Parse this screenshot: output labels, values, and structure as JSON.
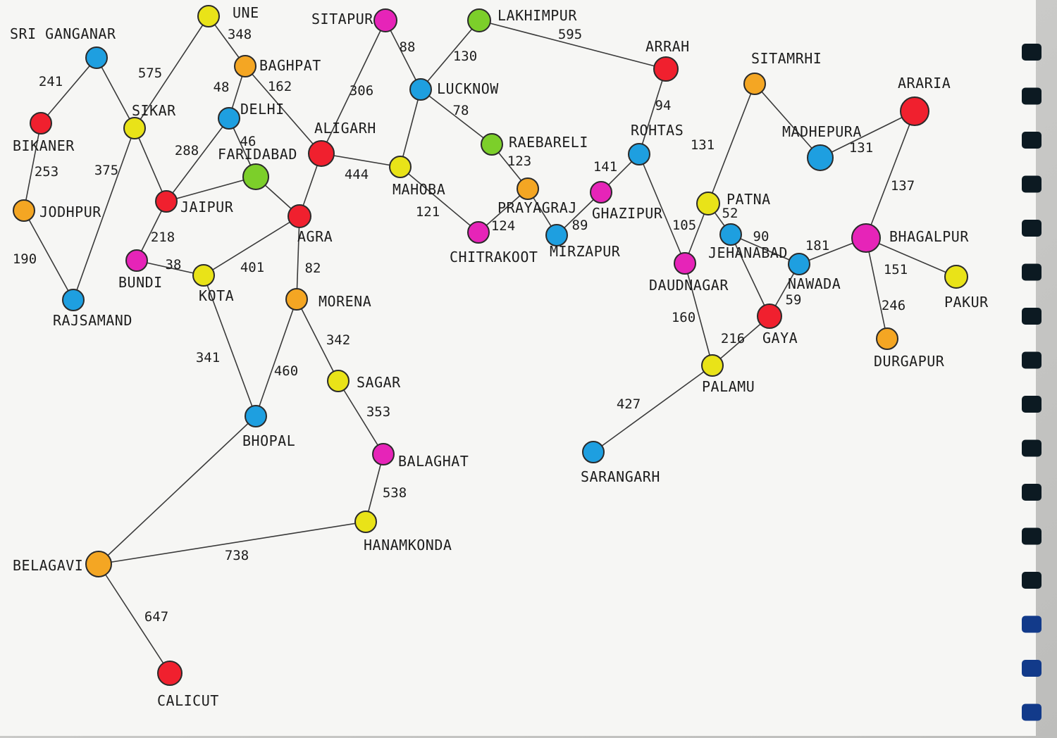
{
  "colors": {
    "red": "#f0202e",
    "orange": "#f4a623",
    "yellow": "#e9e318",
    "blue": "#1e9fe0",
    "magenta": "#e624b8",
    "green": "#7ccf2a",
    "ink": "#1d1d1d",
    "paper": "#f5f5f3"
  },
  "nodes": [
    {
      "id": "sri-ganganar",
      "label": "SRI GANGANAR",
      "color": "blue"
    },
    {
      "id": "une",
      "label": "UNE",
      "color": "yellow"
    },
    {
      "id": "sitapur",
      "label": "SITAPUR",
      "color": "magenta"
    },
    {
      "id": "lakhimpur",
      "label": "LAKHIMPUR",
      "color": "green"
    },
    {
      "id": "arrah",
      "label": "ARRAH",
      "color": "red"
    },
    {
      "id": "sitamrhi",
      "label": "SITAMRHI",
      "color": "orange"
    },
    {
      "id": "araria",
      "label": "ARARIA",
      "color": "red"
    },
    {
      "id": "baghpat",
      "label": "BAGHPAT",
      "color": "orange"
    },
    {
      "id": "delhi",
      "label": "DELHI",
      "color": "blue"
    },
    {
      "id": "sikar",
      "label": "SIKAR",
      "color": "yellow"
    },
    {
      "id": "bikaner",
      "label": "BIKANER",
      "color": "red"
    },
    {
      "id": "faridabad",
      "label": "FARIDABAD",
      "color": "green"
    },
    {
      "id": "aligarh",
      "label": "ALIGARH",
      "color": "red"
    },
    {
      "id": "lucknow",
      "label": "LUCKNOW",
      "color": "blue"
    },
    {
      "id": "raebareli",
      "label": "RAEBARELI",
      "color": "green"
    },
    {
      "id": "rohtas",
      "label": "ROHTAS",
      "color": "blue"
    },
    {
      "id": "madhepura",
      "label": "MADHEPURA",
      "color": "blue"
    },
    {
      "id": "jodhpur",
      "label": "JODHPUR",
      "color": "orange"
    },
    {
      "id": "jaipur",
      "label": "JAIPUR",
      "color": "red"
    },
    {
      "id": "mahoba",
      "label": "MAHOBA",
      "color": "yellow"
    },
    {
      "id": "prayagraj",
      "label": "PRAYAGRAJ",
      "color": "orange"
    },
    {
      "id": "ghazipur",
      "label": "GHAZIPUR",
      "color": "magenta"
    },
    {
      "id": "patna",
      "label": "PATNA",
      "color": "yellow"
    },
    {
      "id": "agra",
      "label": "AGRA",
      "color": "red"
    },
    {
      "id": "chitrakoot",
      "label": "CHITRAKOOT",
      "color": "magenta"
    },
    {
      "id": "mirzapur",
      "label": "MIRZAPUR",
      "color": "blue"
    },
    {
      "id": "jehanabad",
      "label": "JEHANABAD",
      "color": "blue"
    },
    {
      "id": "bhagalpur",
      "label": "BHAGALPUR",
      "color": "magenta"
    },
    {
      "id": "bundi",
      "label": "BUNDI",
      "color": "magenta"
    },
    {
      "id": "kota",
      "label": "KOTA",
      "color": "yellow"
    },
    {
      "id": "daudnagar",
      "label": "DAUDNAGAR",
      "color": "magenta"
    },
    {
      "id": "nawada",
      "label": "NAWADA",
      "color": "blue"
    },
    {
      "id": "pakur",
      "label": "PAKUR",
      "color": "yellow"
    },
    {
      "id": "rajsamand",
      "label": "RAJSAMAND",
      "color": "blue"
    },
    {
      "id": "morena",
      "label": "MORENA",
      "color": "orange"
    },
    {
      "id": "gaya",
      "label": "GAYA",
      "color": "red"
    },
    {
      "id": "durgapur",
      "label": "DURGAPUR",
      "color": "orange"
    },
    {
      "id": "palamu",
      "label": "PALAMU",
      "color": "yellow"
    },
    {
      "id": "sagar",
      "label": "SAGAR",
      "color": "yellow"
    },
    {
      "id": "bhopal",
      "label": "BHOPAL",
      "color": "blue"
    },
    {
      "id": "balaghat",
      "label": "BALAGHAT",
      "color": "magenta"
    },
    {
      "id": "sarangarh",
      "label": "SARANGARH",
      "color": "blue"
    },
    {
      "id": "hanamkonda",
      "label": "HANAMKONDA",
      "color": "yellow"
    },
    {
      "id": "belagavi",
      "label": "BELAGAVI",
      "color": "orange"
    },
    {
      "id": "calicut",
      "label": "CALICUT",
      "color": "red"
    }
  ],
  "edges": [
    {
      "from": "sri-ganganar",
      "to": "bikaner",
      "weight": "241"
    },
    {
      "from": "sri-ganganar",
      "to": "sikar",
      "weight": "575"
    },
    {
      "from": "bikaner",
      "to": "jodhpur",
      "weight": "253"
    },
    {
      "from": "jodhpur",
      "to": "rajsamand",
      "weight": "190"
    },
    {
      "from": "rajsamand",
      "to": "sikar",
      "weight": "375"
    },
    {
      "from": "sikar",
      "to": "une",
      "weight": ""
    },
    {
      "from": "sikar",
      "to": "jaipur",
      "weight": ""
    },
    {
      "from": "une",
      "to": "baghpat",
      "weight": "348"
    },
    {
      "from": "baghpat",
      "to": "delhi",
      "weight": "48"
    },
    {
      "from": "baghpat",
      "to": "aligarh",
      "weight": "162"
    },
    {
      "from": "delhi",
      "to": "jaipur",
      "weight": "288"
    },
    {
      "from": "delhi",
      "to": "faridabad",
      "weight": "46"
    },
    {
      "from": "faridabad",
      "to": "jaipur",
      "weight": ""
    },
    {
      "from": "jaipur",
      "to": "bundi",
      "weight": "218"
    },
    {
      "from": "bundi",
      "to": "kota",
      "weight": "38"
    },
    {
      "from": "kota",
      "to": "agra",
      "weight": "401"
    },
    {
      "from": "kota",
      "to": "bhopal",
      "weight": "341"
    },
    {
      "from": "faridabad",
      "to": "agra",
      "weight": ""
    },
    {
      "from": "agra",
      "to": "aligarh",
      "weight": ""
    },
    {
      "from": "agra",
      "to": "morena",
      "weight": "82"
    },
    {
      "from": "aligarh",
      "to": "sitapur",
      "weight": "306"
    },
    {
      "from": "aligarh",
      "to": "mahoba",
      "weight": "444"
    },
    {
      "from": "sitapur",
      "to": "lucknow",
      "weight": "88"
    },
    {
      "from": "lucknow",
      "to": "lakhimpur",
      "weight": "130"
    },
    {
      "from": "lucknow",
      "to": "mahoba",
      "weight": ""
    },
    {
      "from": "lucknow",
      "to": "raebareli",
      "weight": "78"
    },
    {
      "from": "lakhimpur",
      "to": "arrah",
      "weight": "595"
    },
    {
      "from": "raebareli",
      "to": "prayagraj",
      "weight": "123"
    },
    {
      "from": "mahoba",
      "to": "chitrakoot",
      "weight": "121"
    },
    {
      "from": "chitrakoot",
      "to": "prayagraj",
      "weight": "124"
    },
    {
      "from": "prayagraj",
      "to": "mirzapur",
      "weight": ""
    },
    {
      "from": "mirzapur",
      "to": "ghazipur",
      "weight": "89"
    },
    {
      "from": "ghazipur",
      "to": "rohtas",
      "weight": "141"
    },
    {
      "from": "rohtas",
      "to": "arrah",
      "weight": "94"
    },
    {
      "from": "rohtas",
      "to": "daudnagar",
      "weight": ""
    },
    {
      "from": "sitamrhi",
      "to": "patna",
      "weight": "131"
    },
    {
      "from": "sitamrhi",
      "to": "madhepura",
      "weight": ""
    },
    {
      "from": "madhepura",
      "to": "araria",
      "weight": "131"
    },
    {
      "from": "araria",
      "to": "bhagalpur",
      "weight": "137"
    },
    {
      "from": "patna",
      "to": "daudnagar",
      "weight": "105"
    },
    {
      "from": "patna",
      "to": "jehanabad",
      "weight": "52"
    },
    {
      "from": "jehanabad",
      "to": "nawada",
      "weight": "90"
    },
    {
      "from": "jehanabad",
      "to": "gaya",
      "weight": ""
    },
    {
      "from": "nawada",
      "to": "bhagalpur",
      "weight": "181"
    },
    {
      "from": "nawada",
      "to": "gaya",
      "weight": "59"
    },
    {
      "from": "bhagalpur",
      "to": "pakur",
      "weight": "151"
    },
    {
      "from": "bhagalpur",
      "to": "durgapur",
      "weight": "246"
    },
    {
      "from": "daudnagar",
      "to": "palamu",
      "weight": "160"
    },
    {
      "from": "gaya",
      "to": "palamu",
      "weight": "216"
    },
    {
      "from": "palamu",
      "to": "sarangarh",
      "weight": "427"
    },
    {
      "from": "morena",
      "to": "bhopal",
      "weight": "460"
    },
    {
      "from": "morena",
      "to": "sagar",
      "weight": "342"
    },
    {
      "from": "sagar",
      "to": "balaghat",
      "weight": "353"
    },
    {
      "from": "balaghat",
      "to": "hanamkonda",
      "weight": "538"
    },
    {
      "from": "hanamkonda",
      "to": "belagavi",
      "weight": "738"
    },
    {
      "from": "bhopal",
      "to": "belagavi",
      "weight": ""
    },
    {
      "from": "belagavi",
      "to": "calicut",
      "weight": "647"
    }
  ]
}
